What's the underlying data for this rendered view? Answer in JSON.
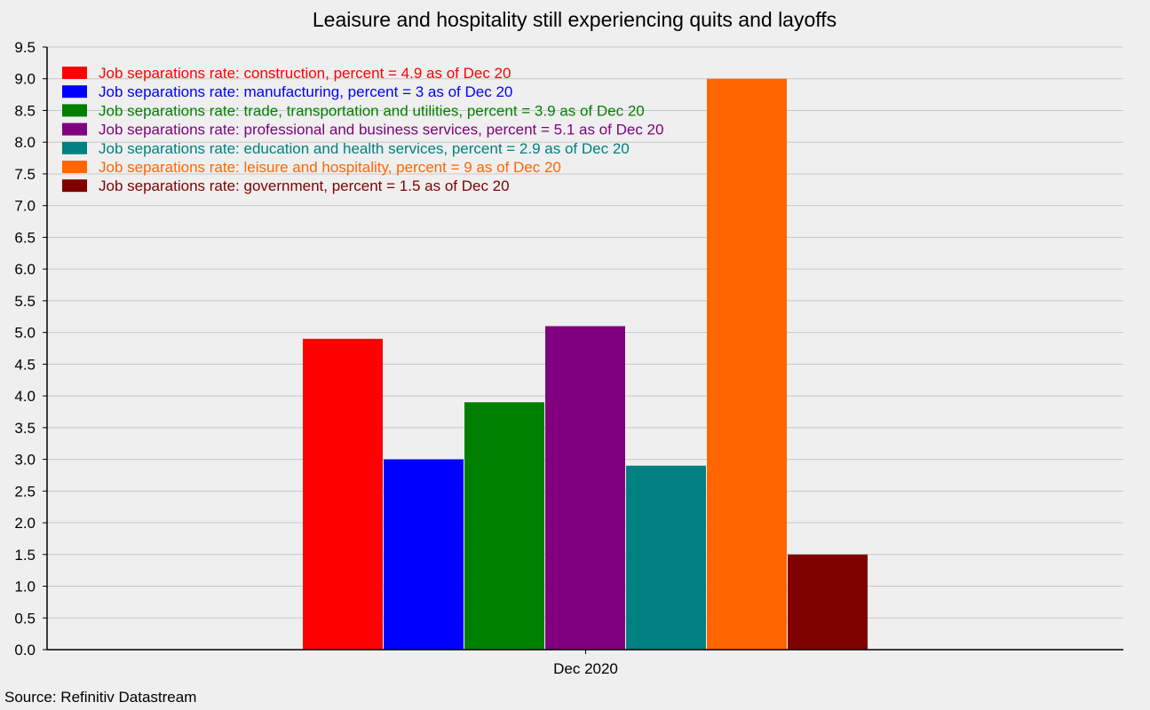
{
  "chart_data": {
    "type": "bar",
    "title": "Leaisure and hospitality still experiencing quits and layoffs",
    "source": "Source: Refinitiv Datastream",
    "categories": [
      "Dec 2020"
    ],
    "ylim": [
      0,
      9.5
    ],
    "y_ticks": [
      "0.0",
      "0.5",
      "1.0",
      "1.5",
      "2.0",
      "2.5",
      "3.0",
      "3.5",
      "4.0",
      "4.5",
      "5.0",
      "5.5",
      "6.0",
      "6.5",
      "7.0",
      "7.5",
      "8.0",
      "8.5",
      "9.0",
      "9.5"
    ],
    "grid": true,
    "legend_position": "top-left",
    "series": [
      {
        "name": "Job separations rate: construction, percent = 4.9 as of Dec 20",
        "values": [
          4.9
        ],
        "color": "#ff0000"
      },
      {
        "name": "Job separations rate: manufacturing, percent = 3 as of Dec 20",
        "values": [
          3.0
        ],
        "color": "#0000ff"
      },
      {
        "name": "Job separations rate: trade, transportation and utilities, percent = 3.9 as of Dec 20",
        "values": [
          3.9
        ],
        "color": "#008000"
      },
      {
        "name": "Job separations rate: professional and business services, percent = 5.1 as of Dec 20",
        "values": [
          5.1
        ],
        "color": "#800080"
      },
      {
        "name": "Job separations rate: education and health services, percent = 2.9 as of Dec 20",
        "values": [
          2.9
        ],
        "color": "#008080"
      },
      {
        "name": "Job separations rate: leisure and hospitality, percent = 9 as of Dec 20",
        "values": [
          9.0
        ],
        "color": "#ff6600"
      },
      {
        "name": "Job separations rate: government, percent = 1.5 as of Dec 20",
        "values": [
          1.5
        ],
        "color": "#800000"
      }
    ]
  }
}
